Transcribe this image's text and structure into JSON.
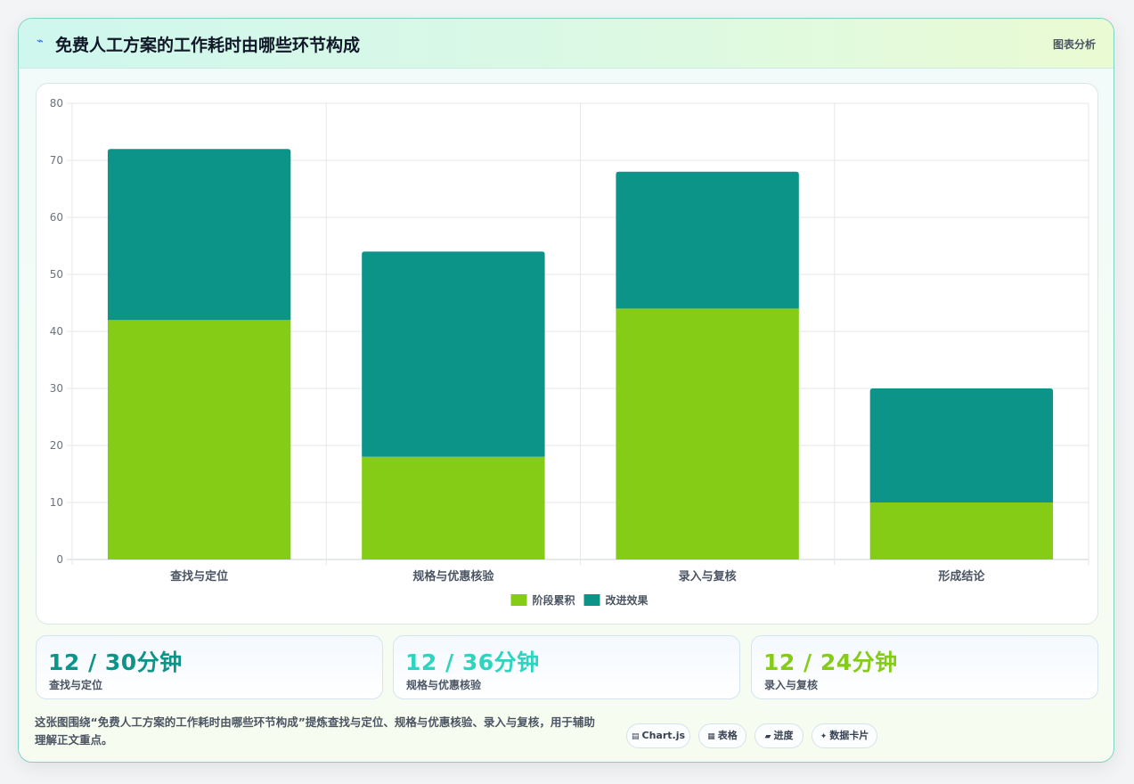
{
  "header": {
    "title": "免费人工方案的工作耗时由哪些环节构成",
    "tag": "图表分析"
  },
  "chart_data": {
    "type": "bar",
    "stacked": true,
    "categories": [
      "查找与定位",
      "规格与优惠核验",
      "录入与复核",
      "形成结论"
    ],
    "series": [
      {
        "name": "阶段累积",
        "color": "#84cc16",
        "values": [
          42,
          18,
          44,
          10
        ]
      },
      {
        "name": "改进效果",
        "color": "#0d9488",
        "values": [
          30,
          36,
          24,
          20
        ]
      }
    ],
    "ylim": [
      0,
      80
    ],
    "yticks": [
      0,
      10,
      20,
      30,
      40,
      50,
      60,
      70,
      80
    ],
    "grid": true,
    "legend": "bottom"
  },
  "stats": [
    {
      "value": "12 / 30分钟",
      "label": "查找与定位",
      "color": "#0d9488"
    },
    {
      "value": "12 / 36分钟",
      "label": "规格与优惠核验",
      "color": "#2dd4bf"
    },
    {
      "value": "12 / 24分钟",
      "label": "录入与复核",
      "color": "#84cc16"
    }
  ],
  "summary": "这张图围绕“免费人工方案的工作耗时由哪些环节构成”提炼查找与定位、规格与优惠核验、录入与复核，用于辅助理解正文重点。",
  "chips": [
    {
      "icon": "chart-icon",
      "label": "Chart.js"
    },
    {
      "icon": "table-icon",
      "label": "表格"
    },
    {
      "icon": "progress-icon",
      "label": "进度"
    },
    {
      "icon": "card-icon",
      "label": "数据卡片"
    }
  ]
}
